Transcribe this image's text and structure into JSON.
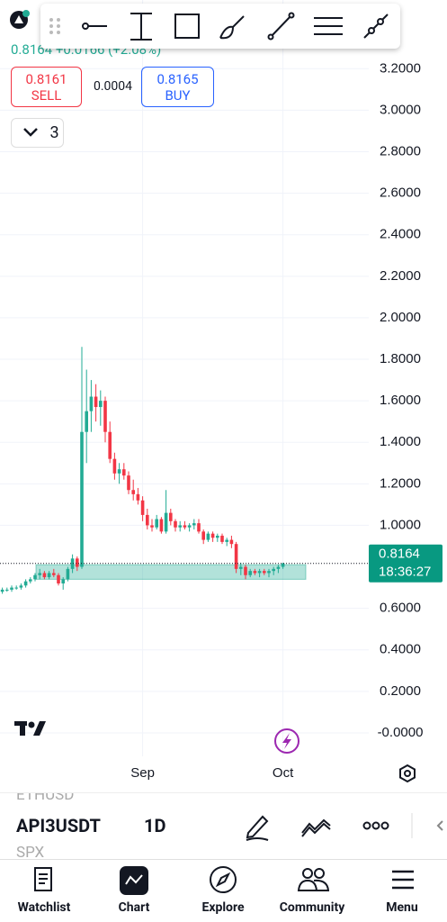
{
  "header": {
    "quote": "0.8164 +0.0166 (+2.08%)",
    "sell": {
      "price": "0.8161",
      "label": "SELL"
    },
    "spread": "0.0004",
    "buy": {
      "price": "0.8165",
      "label": "BUY"
    },
    "layers": "3"
  },
  "chart_data": {
    "type": "candlestick",
    "categories": [
      null,
      null,
      null,
      null,
      null,
      null,
      null,
      null,
      null,
      null,
      null,
      null,
      null,
      null,
      null,
      null,
      null,
      null,
      null,
      null,
      null,
      null,
      null,
      null,
      null,
      null,
      null,
      null,
      null,
      null,
      "Sep",
      null,
      null,
      null,
      null,
      null,
      null,
      null,
      null,
      null,
      null,
      null,
      null,
      null,
      null,
      null,
      null,
      null,
      null,
      null,
      null,
      null,
      null,
      null,
      null,
      null,
      null,
      null,
      null,
      null,
      "Oct"
    ],
    "open": [
      0.68,
      0.69,
      0.69,
      0.7,
      0.7,
      0.71,
      0.73,
      0.74,
      0.76,
      0.77,
      0.75,
      0.77,
      0.76,
      0.72,
      0.74,
      0.79,
      0.84,
      0.8,
      1.45,
      1.55,
      1.62,
      1.57,
      1.6,
      1.45,
      1.32,
      1.25,
      1.27,
      1.24,
      1.17,
      1.15,
      1.12,
      1.05,
      1.0,
      0.99,
      1.03,
      0.97,
      1.06,
      1.02,
      0.99,
      1.0,
      0.99,
      1.0,
      1.01,
      0.97,
      0.93,
      0.96,
      0.94,
      0.95,
      0.92,
      0.93,
      0.91,
      0.79,
      0.8,
      0.76,
      0.78,
      0.77,
      0.78,
      0.77,
      0.78,
      0.79,
      0.8
    ],
    "high": [
      0.7,
      0.7,
      0.71,
      0.71,
      0.72,
      0.74,
      0.75,
      0.77,
      0.79,
      0.78,
      0.78,
      0.79,
      0.77,
      0.75,
      0.8,
      0.86,
      0.85,
      1.86,
      1.75,
      1.7,
      1.68,
      1.65,
      1.62,
      1.5,
      1.35,
      1.3,
      1.3,
      1.26,
      1.22,
      1.18,
      1.14,
      1.08,
      1.03,
      1.05,
      1.04,
      1.17,
      1.08,
      1.03,
      1.02,
      1.02,
      1.01,
      1.03,
      1.03,
      0.98,
      0.97,
      0.97,
      0.96,
      0.96,
      0.94,
      0.95,
      0.92,
      0.82,
      0.81,
      0.79,
      0.79,
      0.79,
      0.79,
      0.79,
      0.8,
      0.81,
      0.82
    ],
    "low": [
      0.67,
      0.68,
      0.68,
      0.69,
      0.69,
      0.7,
      0.72,
      0.73,
      0.74,
      0.74,
      0.74,
      0.75,
      0.71,
      0.69,
      0.73,
      0.77,
      0.78,
      0.79,
      1.3,
      1.45,
      1.5,
      1.48,
      1.4,
      1.3,
      1.22,
      1.2,
      1.22,
      1.15,
      1.12,
      1.1,
      1.02,
      0.98,
      0.97,
      0.98,
      0.96,
      0.96,
      1.0,
      0.97,
      0.97,
      0.98,
      0.97,
      0.98,
      0.96,
      0.91,
      0.92,
      0.92,
      0.92,
      0.91,
      0.9,
      0.89,
      0.77,
      0.76,
      0.74,
      0.75,
      0.76,
      0.75,
      0.76,
      0.75,
      0.76,
      0.77,
      0.79
    ],
    "close": [
      0.69,
      0.69,
      0.7,
      0.7,
      0.71,
      0.73,
      0.74,
      0.76,
      0.77,
      0.75,
      0.77,
      0.76,
      0.72,
      0.74,
      0.79,
      0.84,
      0.8,
      1.45,
      1.55,
      1.62,
      1.57,
      1.6,
      1.45,
      1.32,
      1.25,
      1.27,
      1.24,
      1.17,
      1.15,
      1.12,
      1.05,
      1.0,
      0.99,
      1.03,
      0.97,
      1.06,
      1.02,
      0.99,
      1.0,
      0.99,
      1.0,
      1.01,
      0.97,
      0.93,
      0.96,
      0.94,
      0.95,
      0.92,
      0.93,
      0.91,
      0.79,
      0.8,
      0.76,
      0.78,
      0.77,
      0.78,
      0.77,
      0.78,
      0.79,
      0.8,
      0.8164
    ],
    "up_color": "#22ab94",
    "down_color": "#f23645",
    "ylim": [
      -0.113,
      3.531
    ],
    "yticks": [
      {
        "value": 3.2,
        "label": "3.2000"
      },
      {
        "value": 3.0,
        "label": "3.0000"
      },
      {
        "value": 2.8,
        "label": "2.8000"
      },
      {
        "value": 2.6,
        "label": "2.6000"
      },
      {
        "value": 2.4,
        "label": "2.4000"
      },
      {
        "value": 2.2,
        "label": "2.2000"
      },
      {
        "value": 2.0,
        "label": "2.0000"
      },
      {
        "value": 1.8,
        "label": "1.8000"
      },
      {
        "value": 1.6,
        "label": "1.6000"
      },
      {
        "value": 1.4,
        "label": "1.4000"
      },
      {
        "value": 1.2,
        "label": "1.2000"
      },
      {
        "value": 1.0,
        "label": "1.0000"
      },
      {
        "value": 0.6,
        "label": "0.6000"
      },
      {
        "value": 0.4,
        "label": "0.4000"
      },
      {
        "value": 0.2,
        "label": "0.2000"
      },
      {
        "value": 0,
        "label": "-0.0000"
      }
    ],
    "grid": true,
    "zone": {
      "from": 0.74,
      "to": 0.81,
      "color": "#22ab94"
    },
    "last_price": {
      "value": 0.8164,
      "label": "0.8164",
      "timer": "18:36:27"
    }
  },
  "symbol_bar": {
    "prev": "ETHUSD",
    "symbol": "API3USDT",
    "interval": "1D",
    "next": "SPX"
  },
  "nav": [
    "Watchlist",
    "Chart",
    "Explore",
    "Community",
    "Menu"
  ]
}
